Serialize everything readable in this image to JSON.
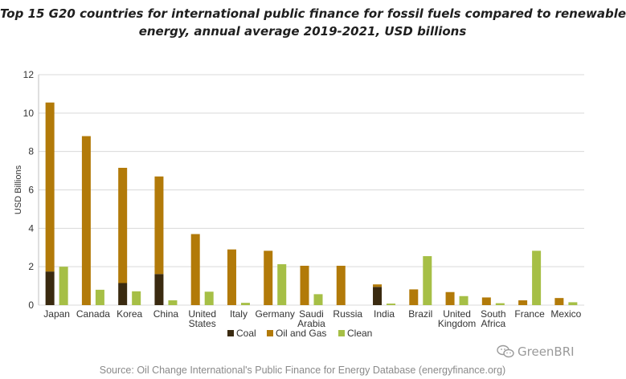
{
  "title_line1": "Top 15 G20 countries for international public finance for fossil fuels compared to renewable",
  "title_line2": "energy, annual average 2019-2021, USD billions",
  "source": "Source: Oil Change International's Public Finance for Energy Database (energyfinance.org)",
  "watermark": "GreenBRI",
  "watermark_icon": "wechat-icon",
  "colors": {
    "coal": "#3a2a10",
    "oil_gas": "#b27a09",
    "clean": "#a6bf46",
    "grid": "#d9d9d9",
    "axis_text": "#333333"
  },
  "chart_data": {
    "type": "bar",
    "stacked_fossil": true,
    "ylabel": "USD Billions",
    "ylim": [
      0,
      12
    ],
    "yticks": [
      0,
      2,
      4,
      6,
      8,
      10,
      12
    ],
    "grid": true,
    "legend_position": "bottom",
    "categories": [
      [
        "Japan"
      ],
      [
        "Canada"
      ],
      [
        "Korea"
      ],
      [
        "China"
      ],
      [
        "United",
        "States"
      ],
      [
        "Italy"
      ],
      [
        "Germany"
      ],
      [
        "Saudi",
        "Arabia"
      ],
      [
        "Russia"
      ],
      [
        "India"
      ],
      [
        "Brazil"
      ],
      [
        "United",
        "Kingdom"
      ],
      [
        "South",
        "Africa"
      ],
      [
        "France"
      ],
      [
        "Mexico"
      ]
    ],
    "series": [
      {
        "name": "Coal",
        "key": "coal",
        "values": [
          1.75,
          0,
          1.15,
          1.62,
          0,
          0,
          0,
          0,
          0,
          0.95,
          0,
          0,
          0,
          0,
          0
        ]
      },
      {
        "name": "Oil and Gas",
        "key": "oil_gas",
        "values": [
          8.8,
          8.8,
          6.0,
          5.08,
          3.7,
          2.9,
          2.83,
          2.05,
          2.05,
          0.13,
          0.82,
          0.68,
          0.4,
          0.25,
          0.37
        ]
      },
      {
        "name": "Clean",
        "key": "clean",
        "values": [
          2.0,
          0.8,
          0.72,
          0.25,
          0.7,
          0.12,
          2.13,
          0.57,
          0,
          0.08,
          2.55,
          0.47,
          0.1,
          2.83,
          0.15
        ]
      }
    ]
  }
}
